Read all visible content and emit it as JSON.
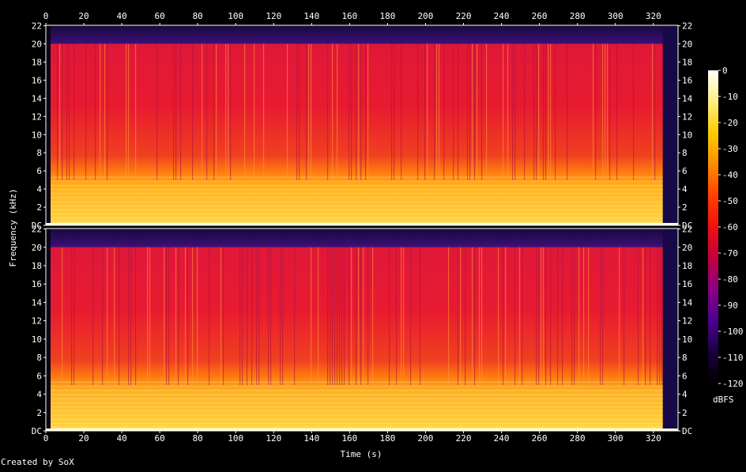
{
  "chart_data": {
    "type": "heatmap",
    "title": "",
    "xlabel": "Time (s)",
    "ylabel": "Frequency (kHz)",
    "xlim": [
      0,
      333
    ],
    "ylim_khz": [
      0,
      22.05
    ],
    "x_ticks": [
      0,
      20,
      40,
      60,
      80,
      100,
      120,
      140,
      160,
      180,
      200,
      220,
      240,
      260,
      280,
      300,
      320
    ],
    "y_ticks": [
      {
        "value": 0,
        "label": "DC"
      },
      {
        "value": 2,
        "label": "2"
      },
      {
        "value": 4,
        "label": "4"
      },
      {
        "value": 6,
        "label": "6"
      },
      {
        "value": 8,
        "label": "8"
      },
      {
        "value": 10,
        "label": "10"
      },
      {
        "value": 12,
        "label": "12"
      },
      {
        "value": 14,
        "label": "14"
      },
      {
        "value": 16,
        "label": "16"
      },
      {
        "value": 18,
        "label": "18"
      },
      {
        "value": 20,
        "label": "20"
      },
      {
        "value": 22,
        "label": "22"
      }
    ],
    "channels": 2,
    "colorbar": {
      "label": "dBFS",
      "range": [
        -120,
        0
      ],
      "ticks": [
        0,
        -10,
        -20,
        -30,
        -40,
        -50,
        -60,
        -70,
        -80,
        -90,
        -100,
        -110,
        -120
      ],
      "colors": [
        "#000000",
        "#1a0040",
        "#4a0090",
        "#8a0080",
        "#c00040",
        "#f01010",
        "#ff4000",
        "#ff8c00",
        "#ffcc00",
        "#ffee80",
        "#ffffff"
      ]
    },
    "audio_end_s": 325,
    "lowpass_khz": 20
  },
  "footer": {
    "credit": "Created by SoX"
  }
}
